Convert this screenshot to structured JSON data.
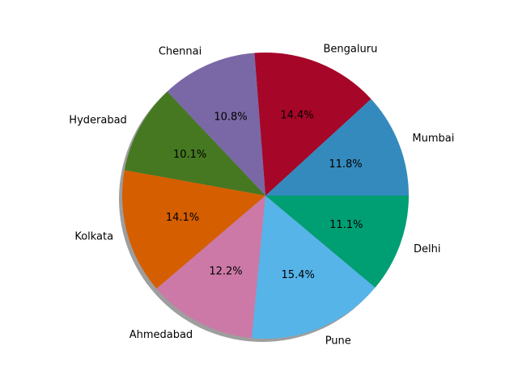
{
  "chart_data": {
    "type": "pie",
    "title": "",
    "shadow": true,
    "start_angle_deg": 0,
    "direction": "counterclockwise",
    "slices": [
      {
        "label": "Mumbai",
        "value": 11.8,
        "pct_text": "11.8%",
        "color": "#348abd"
      },
      {
        "label": "Bengaluru",
        "value": 14.4,
        "pct_text": "14.4%",
        "color": "#a60628"
      },
      {
        "label": "Chennai",
        "value": 10.8,
        "pct_text": "10.8%",
        "color": "#7a68a6"
      },
      {
        "label": "Hyderabad",
        "value": 10.1,
        "pct_text": "10.1%",
        "color": "#467821"
      },
      {
        "label": "Kolkata",
        "value": 14.1,
        "pct_text": "14.1%",
        "color": "#d55e00"
      },
      {
        "label": "Ahmedabad",
        "value": 12.2,
        "pct_text": "12.2%",
        "color": "#cc79a7"
      },
      {
        "label": "Pune",
        "value": 15.4,
        "pct_text": "15.4%",
        "color": "#56b4e9"
      },
      {
        "label": "Delhi",
        "value": 11.1,
        "pct_text": "11.1%",
        "color": "#009e73"
      }
    ]
  }
}
